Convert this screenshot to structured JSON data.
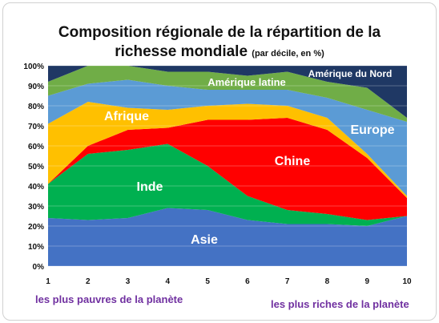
{
  "title": "Composition régionale de la répartition de la",
  "title_line2": "richesse mondiale",
  "subtitle": "(par décile, en %)",
  "note_left": "les plus pauvres de la planète",
  "note_right": "les plus riches de la planète",
  "chart_data": {
    "type": "area",
    "stacked": true,
    "x": [
      1,
      2,
      3,
      4,
      5,
      6,
      7,
      8,
      9,
      10
    ],
    "ylim": [
      0,
      100
    ],
    "yticks": [
      "0%",
      "10%",
      "20%",
      "30%",
      "40%",
      "50%",
      "60%",
      "70%",
      "80%",
      "90%",
      "100%"
    ],
    "grid": true,
    "series": [
      {
        "name": "Asie",
        "color": "#4472c4",
        "values": [
          24,
          23,
          24,
          29,
          28,
          23,
          21,
          21,
          20,
          25
        ]
      },
      {
        "name": "Inde",
        "color": "#00b050",
        "values": [
          17,
          33,
          34,
          32,
          22,
          12,
          7,
          5,
          3,
          0
        ]
      },
      {
        "name": "Chine",
        "color": "#ff0000",
        "values": [
          0,
          4,
          10,
          8,
          23,
          38,
          46,
          42,
          31,
          9
        ]
      },
      {
        "name": "Afrique",
        "color": "#ffc000",
        "values": [
          30,
          22,
          11,
          9,
          7,
          8,
          6,
          6,
          2,
          1
        ]
      },
      {
        "name": "Europe",
        "color": "#5b9bd5",
        "values": [
          14,
          9,
          14,
          12,
          8,
          7,
          8,
          10,
          22,
          37
        ]
      },
      {
        "name": "Amérique latine",
        "color": "#70ad47",
        "values": [
          7,
          9,
          7,
          7,
          9,
          7,
          9,
          8,
          11,
          2
        ]
      },
      {
        "name": "Amérique du Nord",
        "color": "#1f3864",
        "values": [
          8,
          0,
          0,
          3,
          3,
          5,
          3,
          8,
          11,
          26
        ]
      }
    ]
  }
}
